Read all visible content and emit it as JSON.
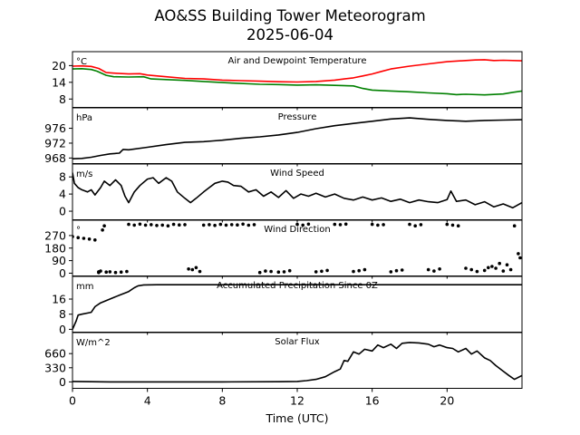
{
  "figure": {
    "title_line1": "AO&SS Building Tower Meteorogram",
    "title_line2": "2025-06-04",
    "xlabel": "Time (UTC)"
  },
  "chart_data": {
    "type": "line",
    "x_range": [
      0,
      24
    ],
    "x_ticks": [
      0,
      4,
      8,
      12,
      16,
      20
    ],
    "x_tick_labels": [
      "0",
      "4",
      "8",
      "12",
      "16",
      "20"
    ],
    "grid": false,
    "panels": [
      {
        "id": "temp",
        "title": "Air and Dewpoint Temperature",
        "unit": "°C",
        "ylim": [
          5,
          25
        ],
        "y_ticks": [
          8,
          14,
          20
        ],
        "y_tick_labels": [
          "8",
          "14",
          "20"
        ],
        "series": [
          {
            "color": "#ff0000",
            "style": "line",
            "x": [
              0,
              0.5,
              1.0,
              1.4,
              1.8,
              2.2,
              3.0,
              3.6,
              4.0,
              5.0,
              6.0,
              7.0,
              8.0,
              9.0,
              10.0,
              11.0,
              12.0,
              13.0,
              14.0,
              15.0,
              15.5,
              16.0,
              16.5,
              17.0,
              18.0,
              19.0,
              20.0,
              21.0,
              21.5,
              22.0,
              22.5,
              23.0,
              24.0
            ],
            "y": [
              19.8,
              19.9,
              19.7,
              19.0,
              17.5,
              17.3,
              17.0,
              17.1,
              16.6,
              16.0,
              15.4,
              15.2,
              14.8,
              14.6,
              14.4,
              14.2,
              14.1,
              14.3,
              14.8,
              15.6,
              16.3,
              17.0,
              17.9,
              18.8,
              19.8,
              20.6,
              21.4,
              21.8,
              22.0,
              22.1,
              21.8,
              21.9,
              21.7
            ]
          },
          {
            "color": "#008000",
            "style": "line",
            "x": [
              0,
              0.5,
              1.0,
              1.3,
              1.8,
              2.2,
              3.0,
              3.8,
              4.2,
              5.0,
              6.0,
              7.0,
              8.0,
              9.0,
              10.0,
              11.0,
              12.0,
              13.0,
              14.0,
              15.0,
              15.5,
              16.0,
              17.0,
              18.0,
              19.0,
              20.0,
              20.5,
              21.0,
              22.0,
              23.0,
              23.5,
              24.0
            ],
            "y": [
              18.8,
              18.9,
              18.6,
              18.0,
              16.5,
              16.0,
              15.9,
              16.0,
              15.2,
              15.0,
              14.7,
              14.3,
              13.9,
              13.6,
              13.3,
              13.2,
              13.0,
              13.1,
              12.9,
              12.7,
              11.8,
              11.2,
              10.9,
              10.6,
              10.2,
              9.9,
              9.6,
              9.7,
              9.5,
              9.8,
              10.4,
              10.9
            ]
          }
        ]
      },
      {
        "id": "pressure",
        "title": "Pressure",
        "unit": "hPa",
        "ylim": [
          966.5,
          981.5
        ],
        "y_ticks": [
          968,
          972,
          976
        ],
        "y_tick_labels": [
          "968",
          "972",
          "976"
        ],
        "series": [
          {
            "color": "#000000",
            "style": "line",
            "x": [
              0,
              0.5,
              1.0,
              1.5,
              2.0,
              2.5,
              2.7,
              3.0,
              4.0,
              5.0,
              6.0,
              7.0,
              7.5,
              8.0,
              9.0,
              10.0,
              11.0,
              12.0,
              13.0,
              14.0,
              15.0,
              16.0,
              17.0,
              18.0,
              19.0,
              20.0,
              21.0,
              22.0,
              23.0,
              24.0
            ],
            "y": [
              967.8,
              967.9,
              968.2,
              968.7,
              969.1,
              969.3,
              970.3,
              970.2,
              970.9,
              971.6,
              972.2,
              972.4,
              972.6,
              972.8,
              973.3,
              973.7,
              974.2,
              974.9,
              975.9,
              976.7,
              977.3,
              977.9,
              978.5,
              978.8,
              978.4,
              978.1,
              977.9,
              978.1,
              978.2,
              978.3
            ]
          }
        ]
      },
      {
        "id": "wind_speed",
        "title": "Wind Speed",
        "unit": "m/s",
        "ylim": [
          -2,
          11
        ],
        "y_ticks": [
          0,
          4,
          8
        ],
        "y_tick_labels": [
          "0",
          "4",
          "8"
        ],
        "series": [
          {
            "color": "#000000",
            "style": "line",
            "x": [
              0,
              0.1,
              0.3,
              0.5,
              0.8,
              1.0,
              1.2,
              1.5,
              1.7,
              2.0,
              2.3,
              2.6,
              2.8,
              3.0,
              3.3,
              3.6,
              4.0,
              4.3,
              4.6,
              5.0,
              5.3,
              5.6,
              6.0,
              6.3,
              6.6,
              7.0,
              7.3,
              7.6,
              8.0,
              8.3,
              8.6,
              9.0,
              9.4,
              9.8,
              10.2,
              10.6,
              11.0,
              11.4,
              11.8,
              12.2,
              12.6,
              13.0,
              13.5,
              14.0,
              14.5,
              15.0,
              15.5,
              16.0,
              16.5,
              17.0,
              17.5,
              18.0,
              18.5,
              19.0,
              19.5,
              20.0,
              20.2,
              20.5,
              21.0,
              21.5,
              22.0,
              22.5,
              23.0,
              23.5,
              24.0
            ],
            "y": [
              9,
              6.5,
              5.5,
              5.0,
              4.5,
              5.0,
              3.8,
              5.5,
              7.0,
              6.0,
              7.3,
              6.0,
              3.5,
              2.0,
              4.5,
              6.0,
              7.5,
              7.8,
              6.5,
              7.8,
              7.0,
              4.5,
              3.0,
              2.0,
              3.0,
              4.5,
              5.5,
              6.5,
              7.0,
              6.8,
              6.0,
              5.8,
              4.5,
              5.0,
              3.5,
              4.5,
              3.2,
              4.8,
              3.0,
              4.0,
              3.5,
              4.2,
              3.3,
              4.0,
              3.0,
              2.6,
              3.3,
              2.6,
              3.1,
              2.3,
              2.8,
              2.0,
              2.6,
              2.2,
              2.0,
              2.7,
              4.7,
              2.3,
              2.6,
              1.5,
              2.2,
              1.0,
              1.7,
              0.8,
              2.0
            ]
          }
        ]
      },
      {
        "id": "wind_direction",
        "title": "Wind Direction",
        "unit": "°",
        "ylim": [
          -20,
          380
        ],
        "y_ticks": [
          0,
          90,
          180,
          270
        ],
        "y_tick_labels": [
          "0",
          "90",
          "180",
          "270"
        ],
        "series": [
          {
            "color": "#000000",
            "style": "dots",
            "x": [
              0.0,
              0.3,
              0.6,
              0.9,
              1.2,
              1.4,
              1.4,
              1.5,
              1.6,
              1.7,
              1.8,
              2.0,
              2.3,
              2.6,
              2.9,
              3.0,
              3.3,
              3.6,
              3.9,
              4.2,
              4.5,
              4.8,
              5.1,
              5.4,
              5.7,
              6.0,
              6.2,
              6.4,
              6.6,
              6.8,
              7.0,
              7.3,
              7.6,
              7.9,
              8.2,
              8.5,
              8.8,
              9.1,
              9.4,
              9.7,
              10.0,
              10.3,
              10.6,
              11.0,
              11.3,
              11.6,
              12.0,
              12.3,
              12.6,
              13.0,
              13.3,
              13.6,
              14.0,
              14.3,
              14.6,
              15.0,
              15.3,
              15.6,
              16.0,
              16.3,
              16.6,
              17.0,
              17.3,
              17.6,
              18.0,
              18.3,
              18.6,
              19.0,
              19.3,
              19.6,
              20.0,
              20.3,
              20.6,
              21.0,
              21.3,
              21.6,
              22.0,
              22.2,
              22.4,
              22.6,
              22.8,
              23.0,
              23.2,
              23.4,
              23.6,
              23.8,
              23.9
            ],
            "y": [
              262,
              255,
              250,
              245,
              238,
              5,
              10,
              15,
              310,
              340,
              8,
              10,
              5,
              8,
              12,
              350,
              345,
              352,
              345,
              348,
              342,
              345,
              340,
              350,
              346,
              348,
              30,
              25,
              40,
              12,
              345,
              348,
              343,
              350,
              345,
              348,
              346,
              352,
              344,
              348,
              5,
              15,
              12,
              8,
              10,
              18,
              350,
              345,
              352,
              10,
              14,
              20,
              350,
              348,
              352,
              12,
              18,
              25,
              350,
              345,
              348,
              10,
              18,
              22,
              350,
              340,
              348,
              25,
              15,
              30,
              350,
              345,
              340,
              35,
              25,
              12,
              20,
              40,
              48,
              35,
              70,
              15,
              60,
              25,
              340,
              140,
              110
            ]
          }
        ]
      },
      {
        "id": "precip",
        "title": "Accumulated Precipitation Since 0Z",
        "unit": "mm",
        "ylim": [
          -1.5,
          28
        ],
        "y_ticks": [
          0,
          8,
          16
        ],
        "y_tick_labels": [
          "0",
          "8",
          "16"
        ],
        "series": [
          {
            "color": "#000000",
            "style": "line",
            "x": [
              0,
              0.2,
              0.3,
              0.5,
              1.0,
              1.2,
              1.5,
              2.0,
              2.5,
              3.0,
              3.3,
              3.5,
              3.8,
              4.5,
              6.0,
              10.0,
              16.0,
              20.0,
              24.0
            ],
            "y": [
              0,
              4.5,
              7.5,
              8.0,
              9.0,
              12.0,
              14.0,
              16.0,
              18.0,
              20.0,
              22.0,
              23.0,
              23.5,
              23.6,
              23.6,
              23.6,
              23.6,
              23.6,
              23.6
            ]
          }
        ]
      },
      {
        "id": "solar",
        "title": "Solar Flux",
        "unit": "W/m^2",
        "ylim": [
          -150,
          1150
        ],
        "y_ticks": [
          0,
          330,
          660
        ],
        "y_tick_labels": [
          "0",
          "330",
          "660"
        ],
        "series": [
          {
            "color": "#000000",
            "style": "line",
            "x": [
              0,
              2.0,
              5.0,
              8.0,
              11.0,
              12.0,
              12.5,
              13.0,
              13.5,
              14.0,
              14.3,
              14.5,
              14.7,
              15.0,
              15.3,
              15.6,
              16.0,
              16.3,
              16.6,
              17.0,
              17.3,
              17.6,
              18.0,
              18.5,
              19.0,
              19.3,
              19.6,
              20.0,
              20.3,
              20.6,
              21.0,
              21.3,
              21.6,
              22.0,
              22.3,
              22.6,
              23.0,
              23.3,
              23.6,
              24.0
            ],
            "y": [
              10,
              0,
              0,
              0,
              5,
              10,
              30,
              60,
              120,
              240,
              300,
              500,
              480,
              700,
              650,
              760,
              720,
              860,
              800,
              880,
              780,
              900,
              920,
              910,
              880,
              820,
              860,
              800,
              780,
              700,
              780,
              650,
              720,
              560,
              500,
              380,
              250,
              150,
              60,
              150
            ]
          }
        ]
      }
    ]
  }
}
